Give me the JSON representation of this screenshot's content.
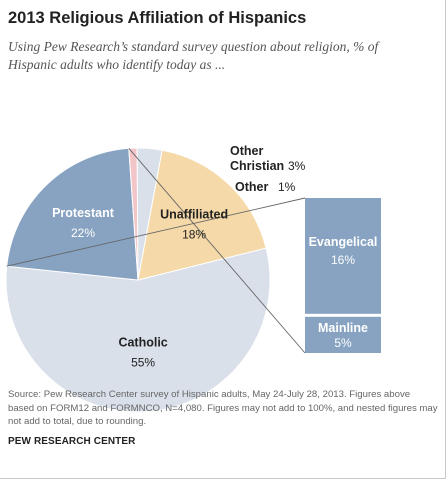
{
  "title": "2013 Religious Affiliation of Hispanics",
  "subtitle": "Using Pew Research’s standard survey question about religion, % of Hispanic adults who identify today as ...",
  "source": "Source: Pew Research Center survey of Hispanic adults, May 24-July 28, 2013. Figures above based on FORM12 and FORMNCO, N=4,080. Figures may not add to 100%, and nested figures may not add to total, due to rounding.",
  "organization": "PEW RESEARCH CENTER",
  "chart_data": {
    "type": "pie",
    "title": "2013 Religious Affiliation of Hispanics",
    "slices": [
      {
        "label": "Catholic",
        "value": 55,
        "value_label": "55%",
        "color": "#d9e0ea"
      },
      {
        "label": "Protestant",
        "value": 22,
        "value_label": "22%",
        "color": "#87a3c1"
      },
      {
        "label": "Other",
        "value": 1,
        "value_label": "1%",
        "color": "#f2c5c9"
      },
      {
        "label": "Other Christian",
        "value": 3,
        "value_label": "3%",
        "color": "#d9e0ea"
      },
      {
        "label": "Unaffiliated",
        "value": 18,
        "value_label": "18%",
        "color": "#f5d9a8"
      }
    ],
    "breakdown": {
      "of": "Protestant",
      "segments": [
        {
          "label": "Evangelical",
          "value": 16,
          "value_label": "16%",
          "color": "#87a3c1"
        },
        {
          "label": "Mainline",
          "value": 5,
          "value_label": "5%",
          "color": "#87a3c1"
        }
      ]
    }
  }
}
